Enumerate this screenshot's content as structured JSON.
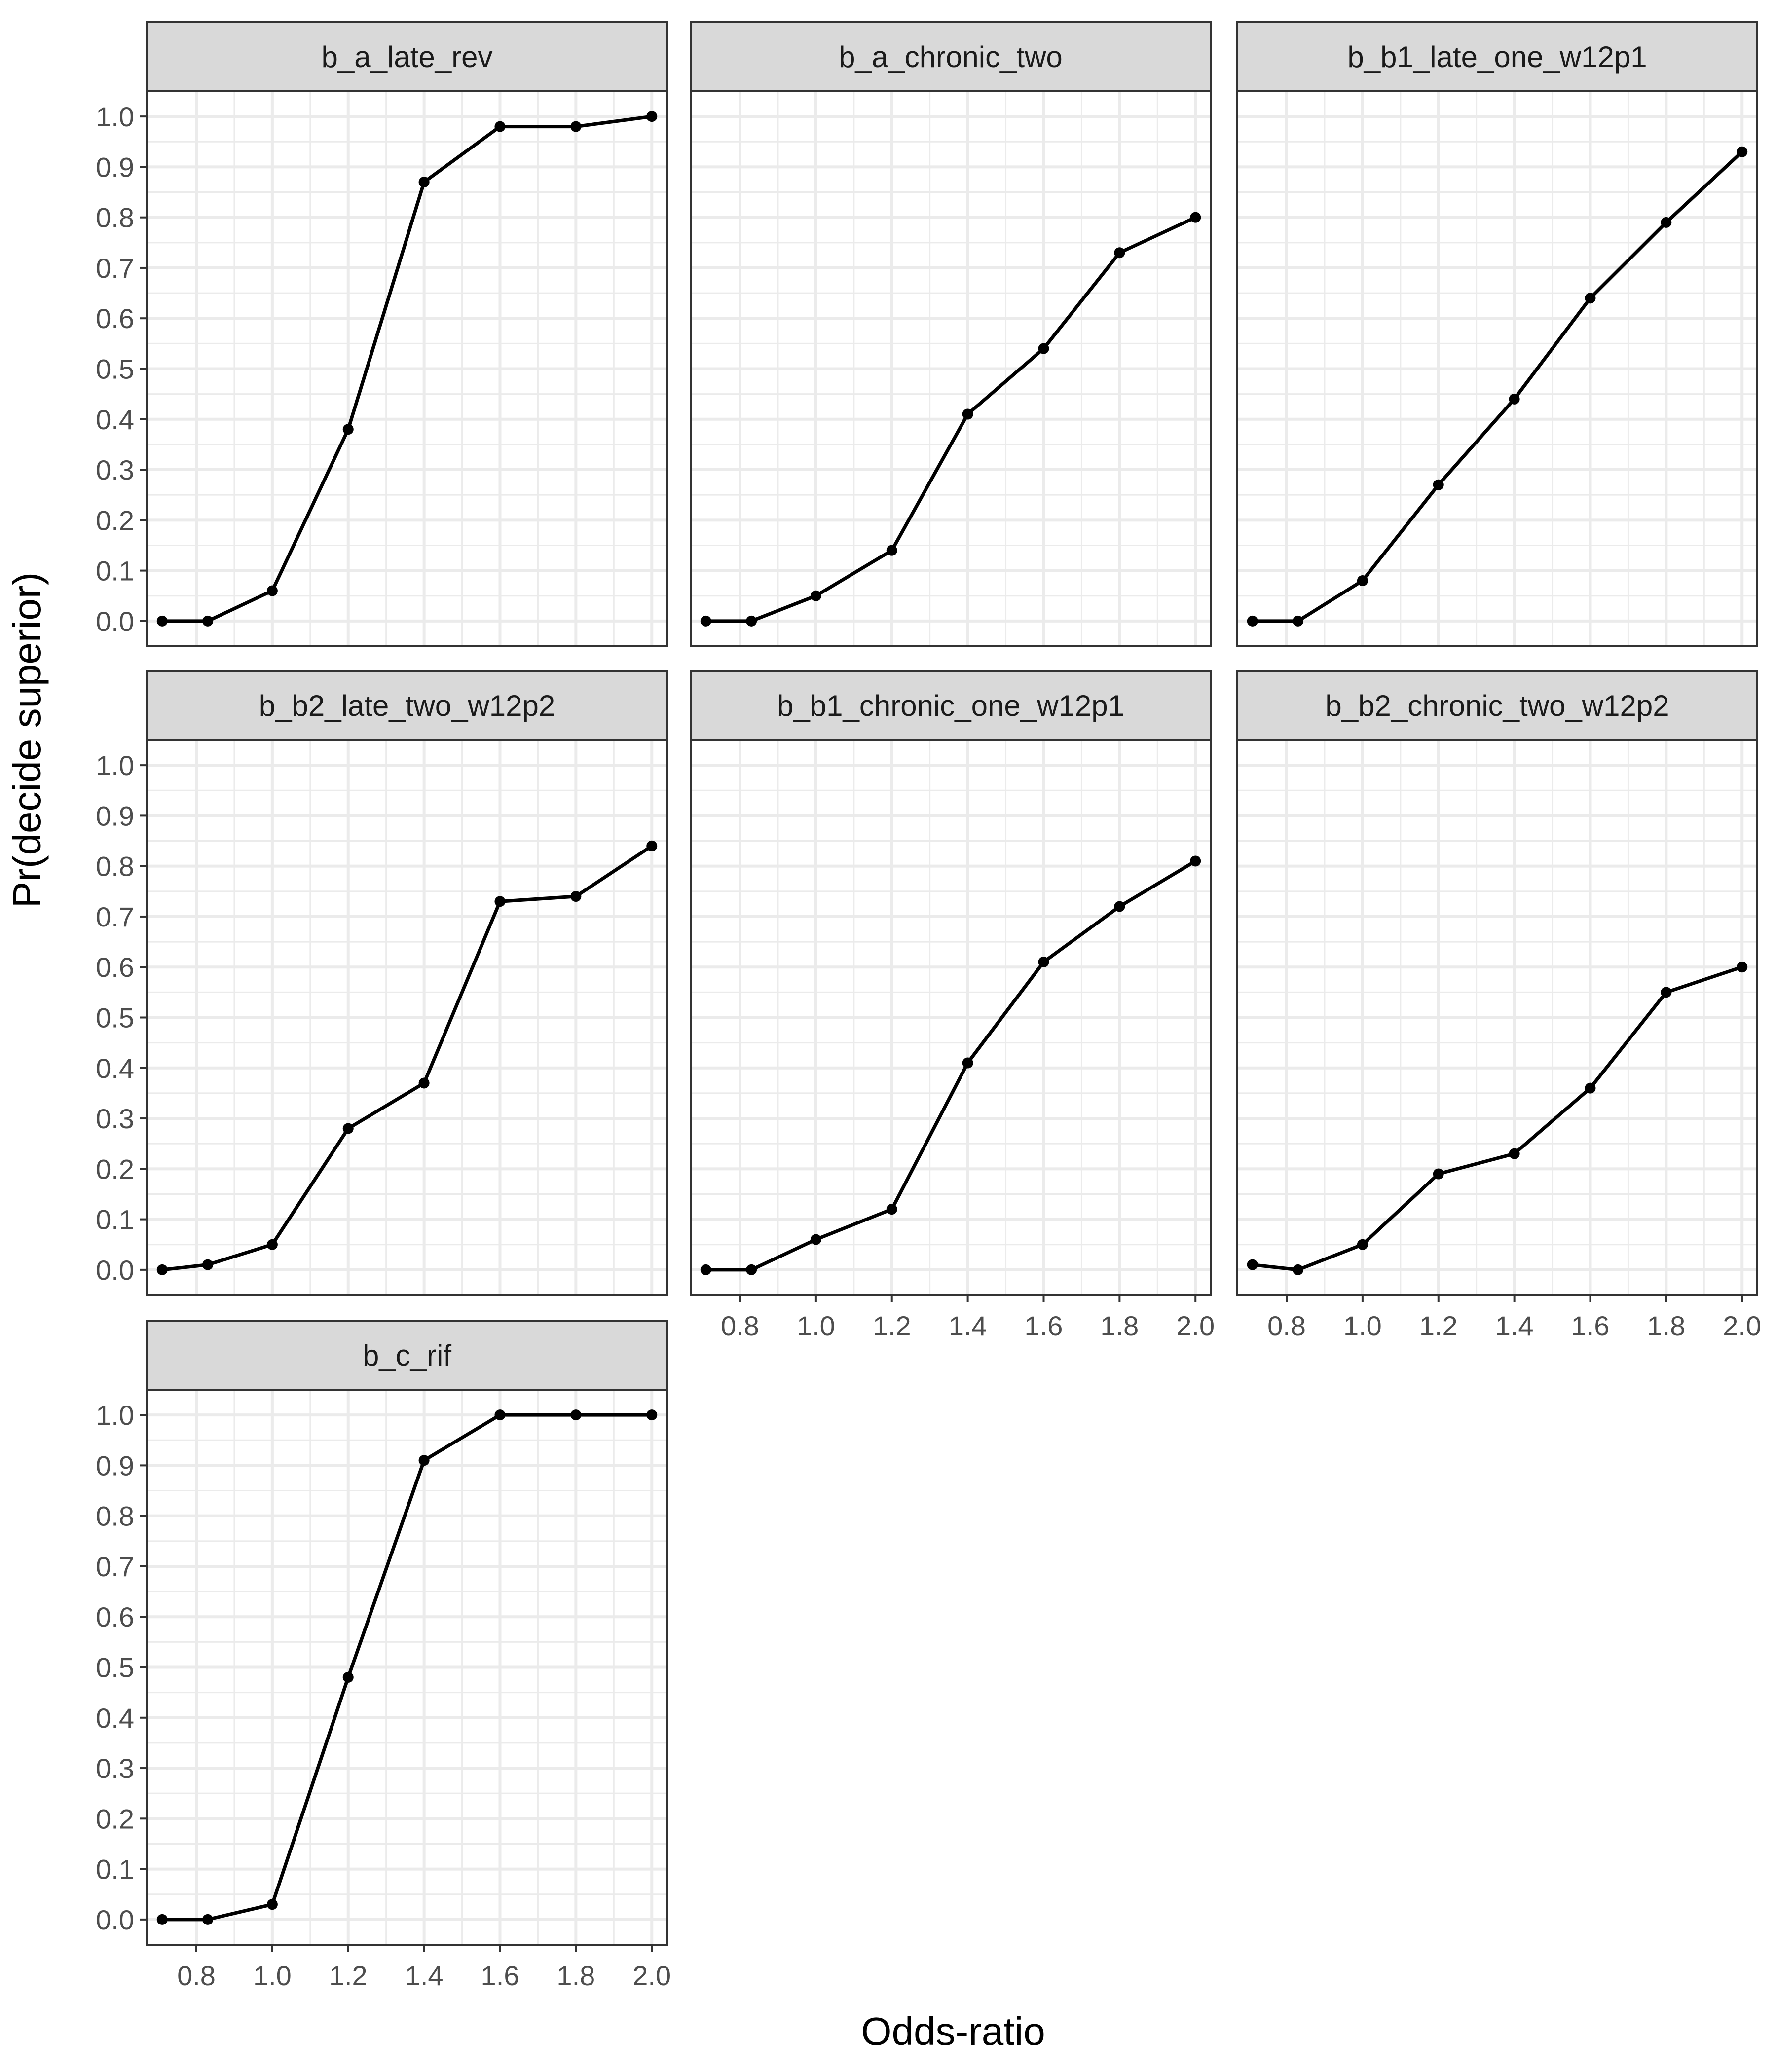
{
  "figure": {
    "xlabel": "Odds-ratio",
    "ylabel": "Pr(decide superior)"
  },
  "chart_data": {
    "type": "line",
    "layout": "facet grid, 3 columns, free x axis on bottom row panels",
    "x": [
      0.71,
      0.83,
      1.0,
      1.2,
      1.4,
      1.6,
      1.8,
      2.0
    ],
    "x_ticks": [
      0.8,
      1.0,
      1.2,
      1.4,
      1.6,
      1.8,
      2.0
    ],
    "x_tick_labels": [
      "0.8",
      "1.0",
      "1.2",
      "1.4",
      "1.6",
      "1.8",
      "2.0"
    ],
    "xlim": [
      0.67,
      2.04
    ],
    "y_ticks": [
      0.0,
      0.1,
      0.2,
      0.3,
      0.4,
      0.5,
      0.6,
      0.7,
      0.8,
      0.9,
      1.0
    ],
    "y_tick_labels": [
      "0.0",
      "0.1",
      "0.2",
      "0.3",
      "0.4",
      "0.5",
      "0.6",
      "0.7",
      "0.8",
      "0.9",
      "1.0"
    ],
    "ylim": [
      -0.05,
      1.05
    ],
    "grid": true,
    "series_color": "#000000",
    "panel_border_color": "#333333",
    "strip_fill": "#d9d9d9",
    "grid_color": "#ebebeb",
    "panels": [
      {
        "title": "b_a_late_rev",
        "values": [
          0.0,
          0.0,
          0.06,
          0.38,
          0.87,
          0.98,
          0.98,
          1.0
        ]
      },
      {
        "title": "b_a_chronic_two",
        "values": [
          0.0,
          0.0,
          0.05,
          0.14,
          0.41,
          0.54,
          0.73,
          0.8
        ]
      },
      {
        "title": "b_b1_late_one_w12p1",
        "values": [
          0.0,
          0.0,
          0.08,
          0.27,
          0.44,
          0.64,
          0.79,
          0.93
        ]
      },
      {
        "title": "b_b2_late_two_w12p2",
        "values": [
          0.0,
          0.01,
          0.05,
          0.28,
          0.37,
          0.73,
          0.74,
          0.84
        ]
      },
      {
        "title": "b_b1_chronic_one_w12p1",
        "values": [
          0.0,
          0.0,
          0.06,
          0.12,
          0.41,
          0.61,
          0.72,
          0.81
        ]
      },
      {
        "title": "b_b2_chronic_two_w12p2",
        "values": [
          0.01,
          0.0,
          0.05,
          0.19,
          0.23,
          0.36,
          0.55,
          0.6
        ]
      },
      {
        "title": "b_c_rif",
        "values": [
          0.0,
          0.0,
          0.03,
          0.48,
          0.91,
          1.0,
          1.0,
          1.0
        ]
      }
    ]
  }
}
